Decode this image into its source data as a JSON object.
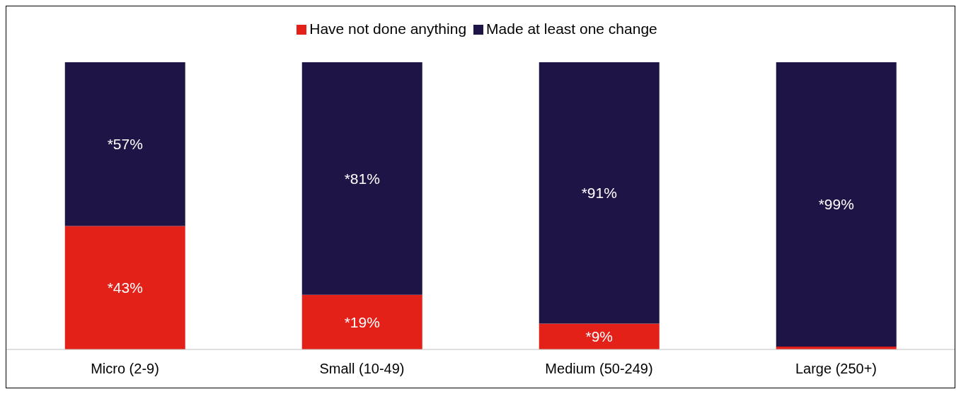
{
  "chart_data": {
    "type": "bar",
    "stacked": true,
    "legend": "top",
    "categories": [
      "Micro (2-9)",
      "Small (10-49)",
      "Medium (50-249)",
      "Large (250+)"
    ],
    "series": [
      {
        "name": "Have not done anything",
        "color": "#e32119",
        "values": [
          43,
          19,
          9,
          1
        ],
        "value_labels": [
          "*43%",
          "*19%",
          "*9%",
          null
        ]
      },
      {
        "name": "Made at least one change",
        "color": "#1e1446",
        "values": [
          57,
          81,
          91,
          99
        ],
        "value_labels": [
          "*57%",
          "*81%",
          "*91%",
          "*99%"
        ]
      }
    ]
  }
}
